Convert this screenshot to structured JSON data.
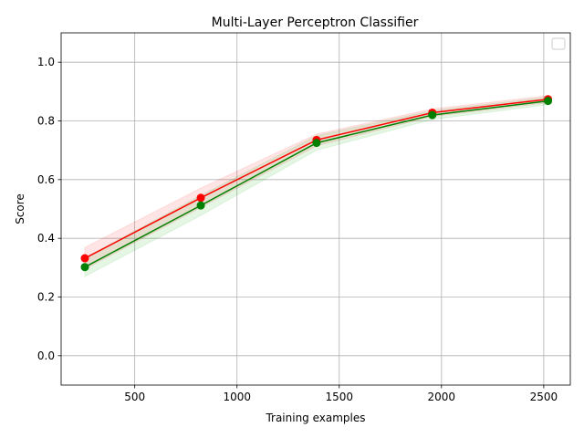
{
  "chart_data": {
    "type": "line",
    "title": "Multi-Layer Perceptron Classifier",
    "xlabel": "Training examples",
    "ylabel": "Score",
    "xlim": [
      140,
      2630
    ],
    "ylim": [
      -0.1,
      1.1
    ],
    "xticks": [
      500,
      1000,
      1500,
      2000,
      2500
    ],
    "yticks": [
      0.0,
      0.2,
      0.4,
      0.6,
      0.8,
      1.0
    ],
    "xtick_labels": [
      "500",
      "1000",
      "1500",
      "2000",
      "2500"
    ],
    "ytick_labels": [
      "0.0",
      "0.2",
      "0.4",
      "0.6",
      "0.8",
      "1.0"
    ],
    "grid": true,
    "legend": {
      "placement": "top-right",
      "entries": []
    },
    "x": [
      256,
      823,
      1389,
      1955,
      2521
    ],
    "series": [
      {
        "color": "#ff0000",
        "band_color": "#ff0000",
        "values": [
          0.332,
          0.538,
          0.735,
          0.828,
          0.874
        ],
        "lower": [
          0.295,
          0.505,
          0.715,
          0.815,
          0.862
        ],
        "upper": [
          0.369,
          0.571,
          0.755,
          0.841,
          0.886
        ]
      },
      {
        "color": "#008000",
        "band_color": "#00aa00",
        "values": [
          0.302,
          0.512,
          0.725,
          0.82,
          0.868
        ],
        "lower": [
          0.27,
          0.478,
          0.7,
          0.805,
          0.855
        ],
        "upper": [
          0.334,
          0.546,
          0.75,
          0.835,
          0.881
        ]
      }
    ]
  }
}
